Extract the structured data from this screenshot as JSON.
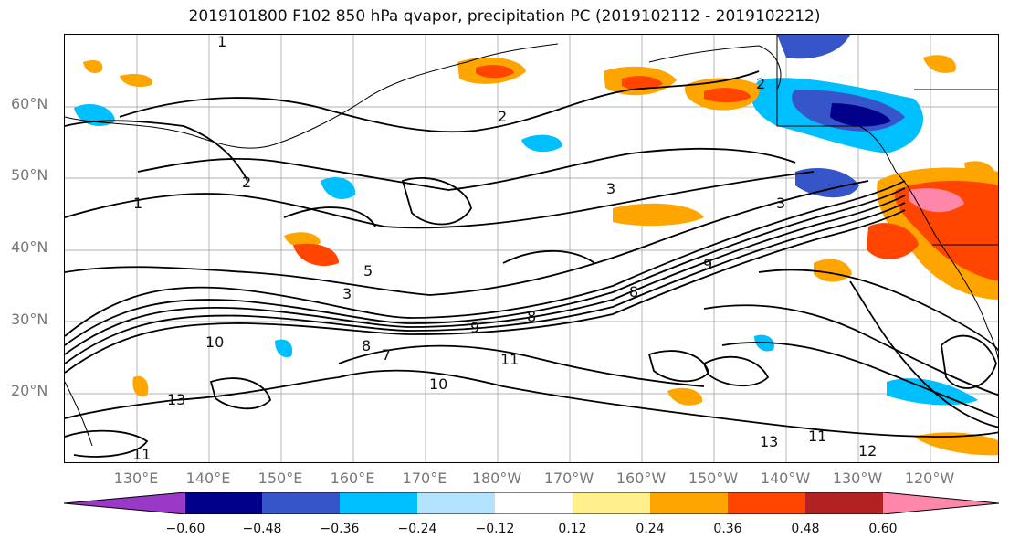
{
  "title": "2019101800 F102 850 hPa qvapor, precipitation PC (2019102112 - 2019102212)",
  "lat_labels": [
    "60°N",
    "50°N",
    "40°N",
    "30°N",
    "20°N"
  ],
  "lon_labels": [
    "130°E",
    "140°E",
    "150°E",
    "160°E",
    "170°E",
    "180°W",
    "170°W",
    "160°W",
    "150°W",
    "140°W",
    "130°W",
    "120°W"
  ],
  "colorbar": {
    "colors": [
      "#9a38c8",
      "#00008a",
      "#3655c9",
      "#00bfff",
      "#b3e3ff",
      "#ffffff",
      "#fff08c",
      "#ffa500",
      "#ff4500",
      "#b22222",
      "#ff88aa"
    ],
    "labels": [
      "−0.60",
      "−0.48",
      "−0.36",
      "−0.24",
      "−0.12",
      "0.12",
      "0.24",
      "0.36",
      "0.48",
      "0.60"
    ],
    "levels": [
      -0.6,
      -0.48,
      -0.36,
      -0.24,
      -0.12,
      0.12,
      0.24,
      0.36,
      0.48,
      0.6
    ],
    "extend": "both"
  },
  "contour_labels": [
    "1",
    "1",
    "2",
    "2",
    "2",
    "3",
    "3",
    "3",
    "5",
    "7",
    "8",
    "8",
    "8",
    "9",
    "9",
    "10",
    "10",
    "11",
    "11",
    "11",
    "12",
    "13",
    "13"
  ],
  "map": {
    "region": "North Pacific",
    "lon_range": [
      "120°E",
      "115°W"
    ],
    "lat_range": [
      "10°N",
      "70°N"
    ],
    "grid": true
  }
}
